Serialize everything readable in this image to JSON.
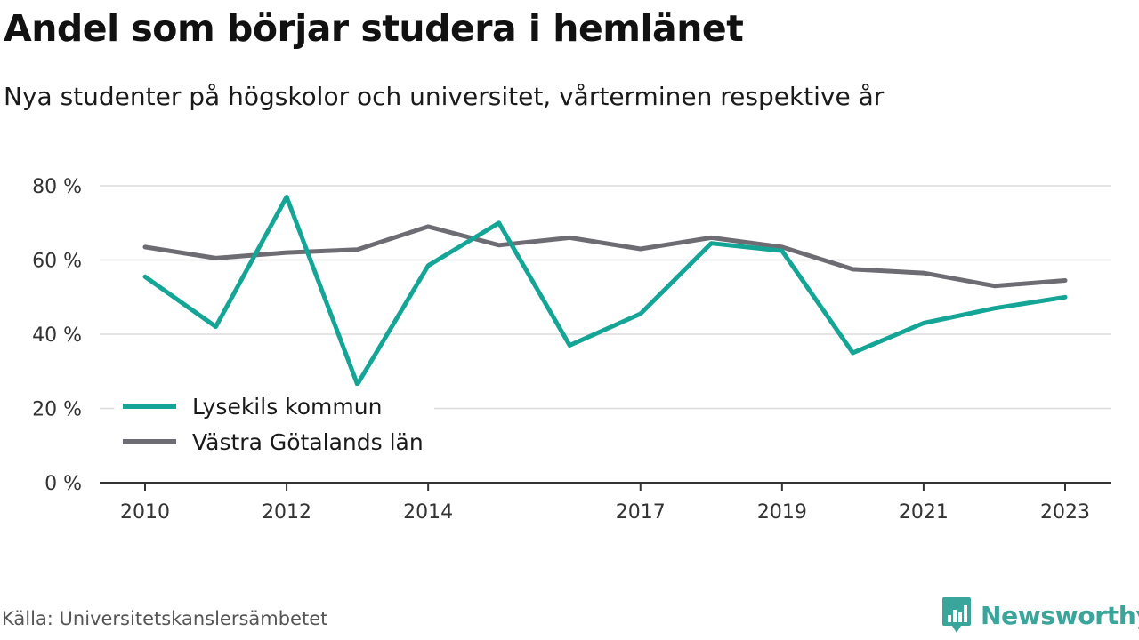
{
  "chart_data": {
    "type": "line",
    "title": "Andel som börjar studera i hemlänet",
    "subtitle": "Nya studenter på högskolor och universitet, vårterminen respektive år",
    "x": [
      2010,
      2011,
      2012,
      2013,
      2014,
      2015,
      2016,
      2017,
      2018,
      2019,
      2020,
      2021,
      2022,
      2023
    ],
    "x_ticks": [
      "2010",
      "2012",
      "2014",
      "2017",
      "2019",
      "2021",
      "2023"
    ],
    "y_ticks": [
      "0 %",
      "20 %",
      "40 %",
      "60 %",
      "80 %"
    ],
    "ylim": [
      0,
      80
    ],
    "grid": true,
    "legend": "bottom-left",
    "series": [
      {
        "name": "Lysekils kommun",
        "color": "#14a597",
        "values": [
          55.5,
          42,
          77,
          26.5,
          58.5,
          70,
          37,
          45.5,
          64.5,
          62.5,
          35,
          43,
          47,
          50
        ]
      },
      {
        "name": "Västra Götalands län",
        "color": "#6e6c73",
        "values": [
          63.5,
          60.5,
          62,
          62.8,
          69,
          64,
          66,
          63,
          66,
          63.5,
          57.5,
          56.5,
          53,
          54.5
        ]
      }
    ]
  },
  "footer": {
    "source": "Källa: Universitetskanslersämbetet",
    "brand": "Newsworthy",
    "brand_icon": "newsworthy-logo-icon",
    "brand_color": "#3aa59a"
  }
}
